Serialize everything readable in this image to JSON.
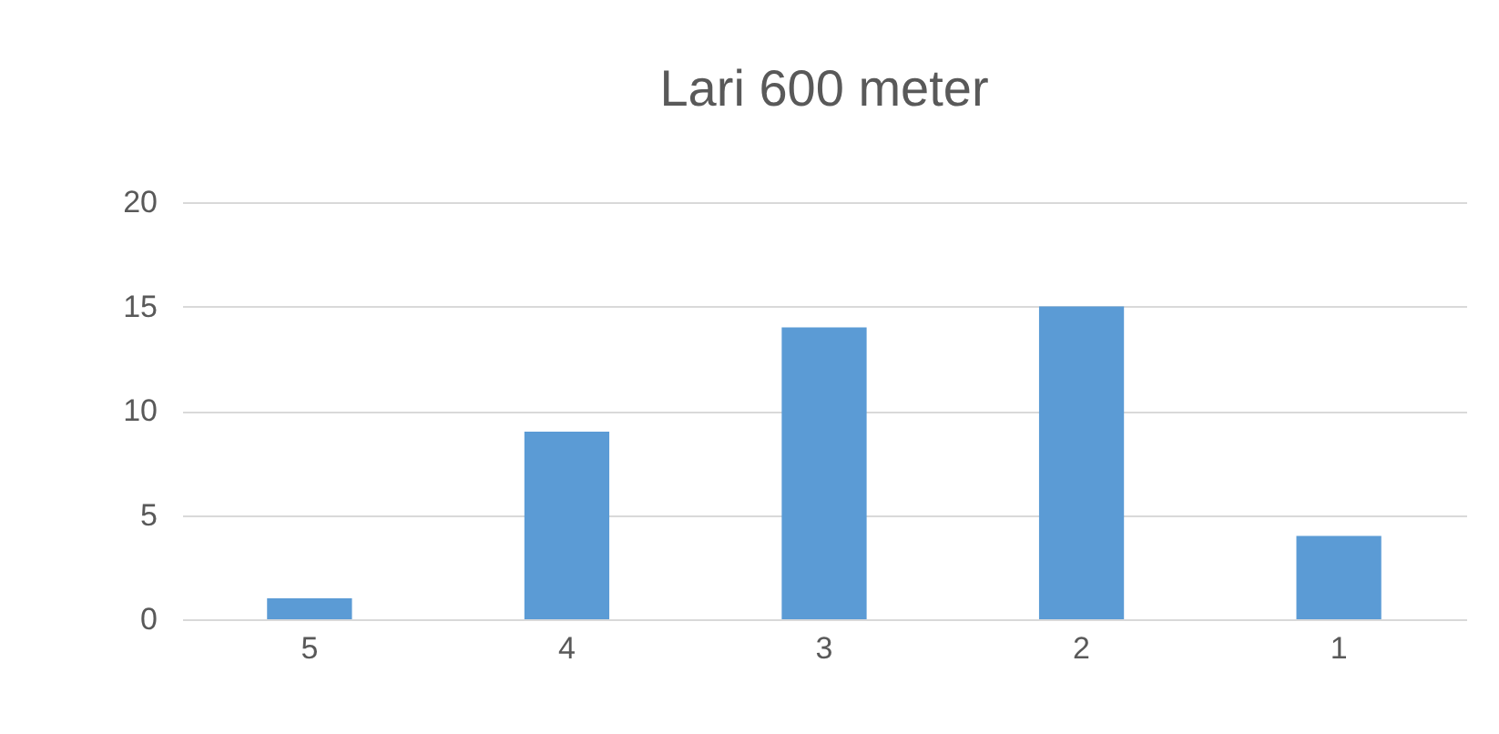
{
  "chart_data": {
    "type": "bar",
    "title": "Lari 600 meter",
    "categories": [
      "5",
      "4",
      "3",
      "2",
      "1"
    ],
    "values": [
      1,
      9,
      14,
      15,
      4
    ],
    "color": "#5b9bd5",
    "ylim": [
      0,
      20
    ],
    "yticks": [
      0,
      5,
      10,
      15,
      20
    ],
    "grid": "y"
  }
}
